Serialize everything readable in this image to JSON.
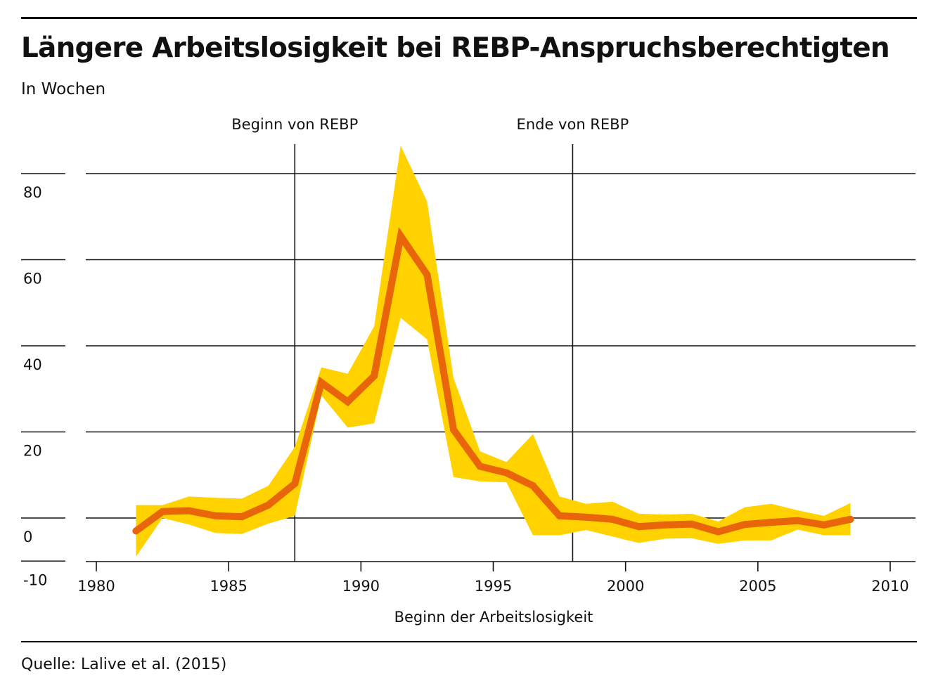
{
  "header": {
    "title": "Längere Arbeitslosigkeit bei REBP-Anspruchsberechtigten",
    "subtitle": "In Wochen"
  },
  "footer": {
    "source": "Quelle: Lalive et al. (2015)"
  },
  "colors": {
    "line": "#E8650A",
    "band": "#FFD200",
    "grid": "#111111"
  },
  "chart_data": {
    "type": "line",
    "title": "Längere Arbeitslosigkeit bei REBP-Anspruchsberechtigten",
    "subtitle": "In Wochen",
    "xlabel": "Beginn der Arbeitslosigkeit",
    "ylabel": "",
    "xlim": [
      1979.5,
      2011
    ],
    "ylim": [
      -10,
      90
    ],
    "x_ticks": [
      1980,
      1985,
      1990,
      1995,
      2000,
      2005,
      2010
    ],
    "y_ticks": [
      -10,
      0,
      20,
      40,
      60,
      80
    ],
    "grid": true,
    "annotations": [
      {
        "x": 1987.5,
        "label": "Beginn von REBP"
      },
      {
        "x": 1998,
        "label": "Ende von REBP"
      }
    ],
    "x": [
      1981.5,
      1982.5,
      1983.5,
      1984.5,
      1985.5,
      1986.5,
      1987.5,
      1988.5,
      1989.5,
      1990.5,
      1991.5,
      1992.5,
      1993.5,
      1994.5,
      1995.5,
      1996.5,
      1997.5,
      1998.5,
      1999.5,
      2000.5,
      2001.5,
      2002.5,
      2003.5,
      2004.5,
      2005.5,
      2006.5,
      2007.5,
      2008.5
    ],
    "series": [
      {
        "name": "",
        "values": [
          -3,
          1.5,
          1.7,
          0.5,
          0.3,
          3,
          8,
          31.5,
          27,
          33,
          65.5,
          56.5,
          20.5,
          12,
          10.5,
          7.5,
          0.5,
          0.2,
          -0.3,
          -2,
          -1.6,
          -1.4,
          -3.2,
          -1.5,
          -1,
          -0.6,
          -1.6,
          -0.3
        ]
      }
    ],
    "band": {
      "upper": [
        3,
        3,
        5,
        4.7,
        4.5,
        7.5,
        16.5,
        35,
        33.5,
        44.5,
        86.5,
        73.5,
        32.5,
        15.5,
        13,
        19.5,
        5,
        3.3,
        3.8,
        1,
        0.8,
        1,
        -0.8,
        2.5,
        3.3,
        1.8,
        0.5,
        3.5
      ],
      "lower": [
        -9,
        0,
        -1.5,
        -3.5,
        -3.7,
        -1.3,
        0.5,
        28.5,
        21,
        22,
        46.5,
        41.5,
        9.5,
        8.5,
        8.3,
        -4,
        -4,
        -2.8,
        -4.3,
        -5.8,
        -4.8,
        -4.7,
        -6,
        -5.2,
        -5.2,
        -2.7,
        -4,
        -4
      ]
    }
  }
}
